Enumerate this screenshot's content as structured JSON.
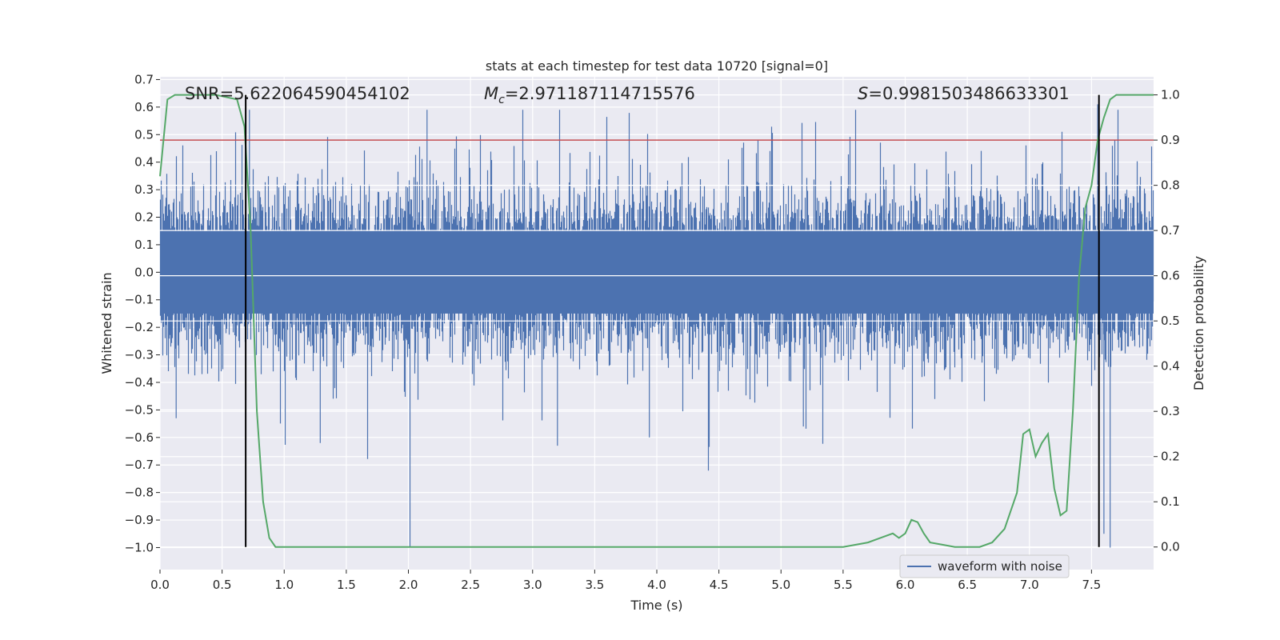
{
  "chart_data": {
    "type": "line",
    "title": "stats at each timestep for test data 10720 [signal=0]",
    "xlabel": "Time (s)",
    "ylabel_left": "Whitened strain",
    "ylabel_right": "Detection probability",
    "xlim": [
      0.0,
      8.0
    ],
    "ylim_left": [
      -1.08,
      0.71
    ],
    "ylim_right": [
      -0.05,
      1.04
    ],
    "x_ticks": [
      "0.0",
      "0.5",
      "1.0",
      "1.5",
      "2.0",
      "2.5",
      "3.0",
      "3.5",
      "4.0",
      "4.5",
      "5.0",
      "5.5",
      "6.0",
      "6.5",
      "7.0",
      "7.5"
    ],
    "y_ticks_left": [
      "0.7",
      "0.6",
      "0.5",
      "0.4",
      "0.3",
      "0.2",
      "0.1",
      "0.0",
      "−0.1",
      "−0.2",
      "−0.3",
      "−0.4",
      "−0.5",
      "−0.6",
      "−0.7",
      "−0.8",
      "−0.9",
      "−1.0"
    ],
    "y_ticks_right": [
      "1.0",
      "0.9",
      "0.8",
      "0.7",
      "0.6",
      "0.5",
      "0.4",
      "0.3",
      "0.2",
      "0.1",
      "0.0"
    ],
    "annotations": {
      "snr": "SNR=5.622064590454102",
      "mc_symbol": "M",
      "mc_sub": "c",
      "mc_value": "=2.971187114715576",
      "s_symbol": "S",
      "s_value": "=0.9981503486633301"
    },
    "legend": [
      "waveform with noise"
    ],
    "series": [
      {
        "name": "waveform with noise",
        "axis": "left",
        "color": "#4c72b0",
        "kind": "noise",
        "sample_rate_hz": 2048,
        "body_amplitude": 0.15,
        "peak_max": 0.59,
        "trough_min": -1.0
      },
      {
        "name": "detection probability",
        "axis": "right",
        "color": "#55a868",
        "x": [
          0.0,
          0.06,
          0.12,
          0.2,
          0.3,
          0.45,
          0.62,
          0.68,
          0.73,
          0.78,
          0.83,
          0.88,
          0.93,
          1.0,
          1.1,
          1.3,
          1.5,
          1.8,
          2.0,
          2.3,
          2.6,
          2.8,
          3.0,
          3.3,
          3.5,
          3.8,
          4.0,
          4.2,
          4.5,
          4.8,
          5.0,
          5.3,
          5.5,
          5.7,
          5.8,
          5.9,
          5.95,
          6.0,
          6.05,
          6.1,
          6.15,
          6.2,
          6.3,
          6.4,
          6.5,
          6.6,
          6.7,
          6.8,
          6.9,
          6.95,
          7.0,
          7.05,
          7.1,
          7.15,
          7.2,
          7.25,
          7.3,
          7.35,
          7.4,
          7.45,
          7.5,
          7.55,
          7.6,
          7.65,
          7.7,
          7.75,
          7.8,
          7.9,
          8.0
        ],
        "y": [
          0.82,
          0.99,
          1.0,
          1.0,
          1.0,
          1.0,
          0.99,
          0.93,
          0.7,
          0.3,
          0.1,
          0.02,
          0.0,
          0.0,
          0.0,
          0.0,
          0.0,
          0.0,
          0.0,
          0.0,
          0.0,
          0.0,
          0.0,
          0.0,
          0.0,
          0.0,
          0.0,
          0.0,
          0.0,
          0.0,
          0.0,
          0.0,
          0.0,
          0.01,
          0.02,
          0.03,
          0.02,
          0.03,
          0.06,
          0.055,
          0.03,
          0.01,
          0.005,
          0.0,
          0.0,
          0.0,
          0.01,
          0.04,
          0.12,
          0.25,
          0.26,
          0.2,
          0.23,
          0.25,
          0.13,
          0.07,
          0.08,
          0.3,
          0.6,
          0.75,
          0.8,
          0.9,
          0.95,
          0.99,
          1.0,
          1.0,
          1.0,
          1.0,
          1.0
        ]
      }
    ],
    "hlines": [
      {
        "axis": "right",
        "y": 0.9,
        "color": "#c44e52"
      }
    ],
    "vlines": [
      {
        "x": 0.69,
        "color": "#000000",
        "y_range_right": [
          0.0,
          1.0
        ]
      },
      {
        "x": 7.56,
        "color": "#000000",
        "y_range_right": [
          0.0,
          1.0
        ]
      }
    ],
    "colors": {
      "plot_bg": "#eaeaf2",
      "grid": "#ffffff",
      "text": "#262626"
    }
  }
}
